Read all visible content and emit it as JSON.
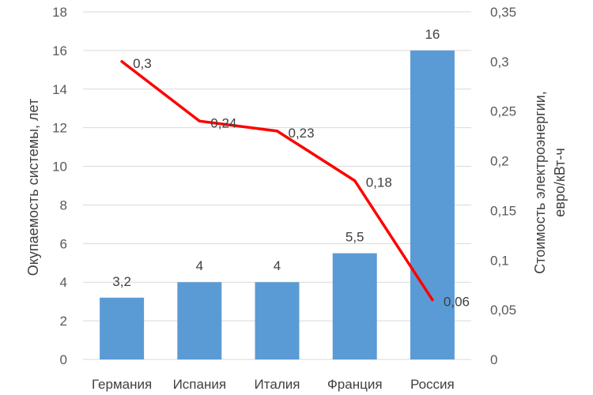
{
  "chart_data": {
    "type": "bar",
    "categories": [
      "Германия",
      "Испания",
      "Италия",
      "Франция",
      "Россия"
    ],
    "series": [
      {
        "kind": "bar",
        "axis": "left",
        "values": [
          3.2,
          4,
          4,
          5.5,
          16
        ],
        "labels": [
          "3,2",
          "4",
          "4",
          "5,5",
          "16"
        ],
        "color": "#5B9BD5"
      },
      {
        "kind": "line",
        "axis": "right",
        "values": [
          0.3,
          0.24,
          0.23,
          0.18,
          0.06
        ],
        "labels": [
          "0,3",
          "0,24",
          "0,23",
          "0,18",
          "0,06"
        ],
        "color": "#FF0000"
      }
    ],
    "y_left": {
      "label": "Окупаемость системы, лет",
      "ylim": [
        0,
        18
      ],
      "ticks": [
        0,
        2,
        4,
        6,
        8,
        10,
        12,
        14,
        16,
        18
      ],
      "tick_labels": [
        "0",
        "2",
        "4",
        "6",
        "8",
        "10",
        "12",
        "14",
        "16",
        "18"
      ]
    },
    "y_right": {
      "label_lines": [
        "Стоимость электроэнергии,",
        "евро/кВт-ч"
      ],
      "ylim": [
        0,
        0.35
      ],
      "ticks": [
        0,
        0.05,
        0.1,
        0.15,
        0.2,
        0.25,
        0.3,
        0.35
      ],
      "tick_labels": [
        "0",
        "0,05",
        "0,1",
        "0,15",
        "0,2",
        "0,25",
        "0,3",
        "0,35"
      ]
    },
    "grid": true,
    "legend": "none"
  }
}
